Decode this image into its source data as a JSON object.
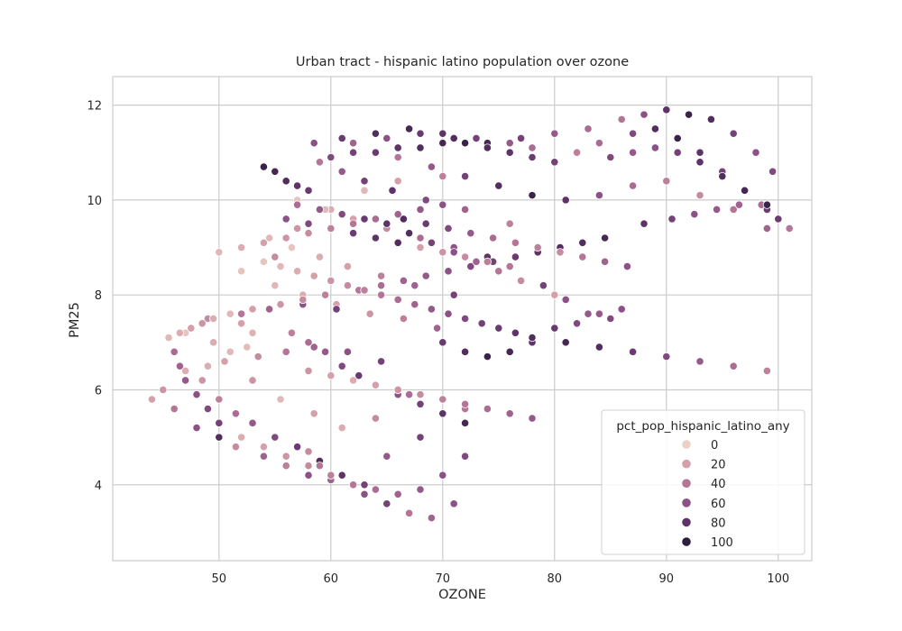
{
  "chart_data": {
    "type": "scatter",
    "title": "Urban tract - hispanic latino population over ozone",
    "xlabel": "OZONE",
    "ylabel": "PM25",
    "xlim": [
      40.5,
      103
    ],
    "ylim": [
      2.4,
      12.6
    ],
    "xticks": [
      50,
      60,
      70,
      80,
      90,
      100
    ],
    "yticks": [
      4,
      6,
      8,
      10,
      12
    ],
    "grid": true,
    "legend": {
      "title": "pct_pop_hispanic_latino_any",
      "placement": "lower-right",
      "entries": [
        {
          "label": "0",
          "value": 0,
          "color": "#ecd0c6"
        },
        {
          "label": "20",
          "value": 20,
          "color": "#d5a0a9"
        },
        {
          "label": "40",
          "value": 40,
          "color": "#b47596"
        },
        {
          "label": "60",
          "value": 60,
          "color": "#8c5186"
        },
        {
          "label": "80",
          "value": 80,
          "color": "#5e3368"
        },
        {
          "label": "100",
          "value": 100,
          "color": "#2d1e3e"
        }
      ]
    },
    "hue_field": "pct_pop_hispanic_latino_any",
    "series": [
      {
        "name": "tracts",
        "x": [
          47.0,
          49.5,
          51.0,
          52.0,
          52.5,
          53.0,
          55.0,
          57.0,
          60.0,
          63.0,
          66.0,
          70.0,
          45.0,
          44.0,
          46.0,
          48.0,
          50.0,
          51.5,
          54.0,
          56.0,
          58.0,
          62.0,
          65.0,
          68.0,
          72.0,
          49.0,
          53.0,
          55.5,
          58.5,
          61.0,
          64.0,
          67.0,
          52.0,
          55.0,
          57.5,
          60.5,
          63.5,
          66.5,
          69.5,
          54.5,
          56.5,
          59.0,
          61.5,
          64.5,
          67.5,
          71.0,
          57.0,
          59.5,
          62.0,
          65.0,
          68.0,
          71.0,
          74.0,
          59.0,
          61.0,
          63.0,
          65.5,
          68.5,
          72.0,
          76.0,
          58.5,
          61.0,
          64.0,
          67.0,
          70.0,
          73.0,
          76.0,
          78.0,
          62.0,
          65.0,
          68.0,
          71.0,
          74.0,
          77.0,
          80.0,
          83.0,
          86.0,
          88.0,
          90.0,
          92.0,
          94.0,
          96.0,
          98.0,
          99.5,
          100.0,
          82.0,
          84.0,
          87.0,
          89.0,
          91.0,
          93.0,
          95.0,
          97.0,
          99.0,
          66.0,
          69.0,
          72.0,
          75.0,
          78.0,
          81.0,
          84.0,
          87.0,
          90.0,
          93.0,
          96.0,
          99.0,
          79.0,
          81.0,
          83.0,
          85.0,
          70.0,
          72.0,
          74.0,
          76.0,
          78.0,
          80.0,
          82.0,
          84.0,
          86.0,
          54.0,
          55.0,
          56.0,
          57.0,
          58.0,
          47.0,
          48.5,
          50.0,
          51.5,
          53.0,
          55.0,
          57.0,
          59.0,
          61.0,
          63.0,
          49.0,
          52.0,
          54.5,
          57.5,
          60.5,
          50.5,
          53.5,
          56.0,
          58.5,
          61.5,
          64.5,
          56.5,
          58.0,
          59.5,
          61.0,
          62.5,
          64.0,
          66.0,
          68.0,
          70.0,
          72.0,
          58.0,
          59.0,
          60.0,
          63.0,
          65.0,
          67.0,
          69.0,
          71.0,
          45.5,
          46.5,
          47.5,
          48.5,
          49.5,
          51.0,
          53.0,
          55.5,
          57.5,
          59.5,
          62.5,
          64.5,
          66.5,
          68.5,
          70.5,
          72.5,
          74.5,
          76.5,
          78.5,
          80.5,
          82.5,
          84.5,
          88.0,
          90.5,
          92.5,
          94.5,
          96.5,
          98.5,
          101.0,
          60.0,
          62.0,
          64.0,
          66.0,
          68.0,
          70.0,
          72.0,
          74.0,
          76.0,
          78.0,
          80.0,
          85.0,
          87.0,
          89.0,
          91.0,
          93.0,
          95.0,
          97.0,
          99.0,
          66.5,
          68.5,
          70.5,
          72.5,
          74.5,
          76.5,
          78.5,
          80.5,
          82.5,
          84.5,
          86.5,
          57.0,
          59.0,
          61.0,
          63.0,
          65.0,
          67.0,
          69.0,
          71.0,
          73.0,
          75.0,
          77.0,
          80.0,
          54.0,
          55.5,
          57.0,
          58.5,
          60.0,
          61.5,
          63.0,
          64.5,
          66.0,
          67.5,
          69.0,
          70.5,
          72.0,
          73.5,
          75.0,
          76.5,
          78.0,
          81.0,
          84.0,
          87.0,
          90.0,
          93.0,
          96.0,
          99.0,
          58.0,
          60.0,
          62.0,
          64.0,
          66.0,
          68.0,
          70.0,
          72.0,
          74.0,
          76.0,
          78.0,
          56.0,
          58.0,
          60.0,
          62.0,
          64.0,
          66.0,
          68.0,
          70.0,
          72.0,
          74.0,
          76.0,
          46.0,
          46.5,
          47.0,
          48.0,
          49.0,
          50.0,
          52.0,
          54.0,
          56.0,
          58.0,
          60.0,
          62.0,
          64.0,
          66.0,
          68.0,
          70.0,
          72.0,
          50.0,
          52.0,
          54.0,
          56.0,
          58.0,
          60.0,
          62.0,
          64.0,
          66.0,
          68.0,
          70.0
        ],
        "y": [
          7.2,
          7.0,
          6.8,
          7.4,
          6.9,
          7.2,
          8.8,
          9.4,
          9.8,
          10.2,
          10.4,
          10.5,
          6.0,
          5.8,
          5.6,
          5.2,
          5.0,
          4.8,
          4.6,
          4.4,
          4.2,
          4.0,
          4.6,
          5.0,
          5.6,
          6.5,
          6.2,
          5.8,
          5.5,
          5.2,
          5.4,
          5.9,
          8.5,
          8.2,
          8.0,
          7.8,
          7.6,
          7.5,
          7.3,
          9.2,
          9.0,
          8.8,
          8.6,
          8.4,
          8.2,
          8.0,
          10.0,
          9.8,
          9.6,
          9.4,
          9.2,
          9.0,
          8.8,
          10.8,
          10.6,
          10.4,
          10.2,
          10.0,
          9.8,
          9.5,
          11.2,
          11.3,
          11.4,
          11.5,
          11.4,
          11.3,
          11.2,
          11.1,
          11.2,
          11.3,
          11.4,
          11.3,
          11.2,
          11.3,
          11.4,
          11.5,
          11.7,
          11.8,
          11.9,
          11.8,
          11.7,
          11.4,
          11.0,
          10.6,
          9.6,
          11.0,
          11.2,
          11.4,
          11.5,
          11.3,
          11.0,
          10.6,
          10.2,
          9.8,
          10.9,
          10.7,
          10.5,
          10.3,
          10.1,
          10.0,
          10.1,
          10.3,
          10.4,
          10.1,
          9.8,
          9.4,
          8.2,
          7.9,
          7.6,
          7.5,
          7.0,
          6.8,
          6.7,
          6.8,
          7.0,
          7.3,
          7.4,
          7.6,
          7.7,
          10.7,
          10.6,
          10.4,
          10.3,
          10.2,
          6.4,
          6.2,
          5.8,
          5.5,
          5.3,
          5.0,
          4.8,
          4.5,
          4.2,
          4.0,
          7.5,
          7.6,
          7.7,
          7.8,
          7.7,
          6.6,
          6.7,
          6.8,
          6.9,
          6.8,
          6.6,
          7.2,
          7.0,
          6.8,
          6.5,
          6.3,
          6.1,
          5.9,
          5.7,
          5.5,
          5.3,
          4.7,
          4.4,
          4.1,
          3.8,
          3.6,
          3.4,
          3.3,
          3.6,
          7.1,
          7.2,
          7.3,
          7.4,
          7.5,
          7.6,
          7.7,
          7.8,
          7.9,
          8.0,
          8.1,
          8.2,
          8.3,
          8.4,
          8.5,
          8.6,
          8.7,
          8.8,
          8.9,
          9.0,
          9.1,
          9.2,
          9.5,
          9.6,
          9.7,
          9.8,
          9.9,
          9.9,
          9.4,
          10.9,
          11.0,
          11.0,
          11.1,
          11.1,
          11.2,
          11.2,
          11.1,
          11.0,
          10.9,
          10.8,
          10.9,
          11.0,
          11.1,
          11.0,
          10.8,
          10.5,
          10.2,
          9.9,
          9.6,
          9.5,
          9.4,
          9.3,
          9.2,
          9.1,
          9.0,
          8.9,
          8.8,
          8.7,
          8.6,
          9.9,
          9.8,
          9.7,
          9.6,
          9.5,
          9.3,
          9.1,
          8.9,
          8.7,
          8.5,
          8.3,
          8.0,
          8.7,
          8.6,
          8.5,
          8.4,
          8.3,
          8.2,
          8.1,
          8.0,
          7.9,
          7.8,
          7.7,
          7.6,
          7.5,
          7.4,
          7.3,
          7.2,
          7.1,
          7.0,
          6.9,
          6.8,
          6.7,
          6.6,
          6.5,
          6.4,
          6.4,
          6.3,
          6.2,
          6.1,
          6.0,
          5.9,
          5.8,
          5.7,
          5.6,
          5.5,
          5.4,
          9.6,
          9.5,
          9.4,
          9.3,
          9.2,
          9.1,
          9.0,
          8.9,
          8.8,
          8.7,
          8.6,
          6.8,
          6.5,
          6.2,
          5.9,
          5.6,
          5.3,
          5.0,
          4.8,
          4.6,
          4.4,
          4.2,
          4.0,
          3.9,
          3.8,
          3.9,
          4.2,
          4.6,
          8.9,
          9.0,
          9.1,
          9.2,
          9.3,
          9.4,
          9.5,
          9.6,
          9.7,
          9.8,
          9.9
        ],
        "hue": [
          5,
          15,
          10,
          20,
          8,
          12,
          30,
          25,
          15,
          10,
          20,
          35,
          25,
          20,
          40,
          60,
          85,
          30,
          50,
          35,
          60,
          45,
          55,
          70,
          40,
          15,
          25,
          10,
          20,
          15,
          30,
          45,
          5,
          10,
          15,
          20,
          25,
          35,
          50,
          10,
          5,
          15,
          20,
          35,
          50,
          70,
          5,
          10,
          20,
          30,
          45,
          60,
          80,
          40,
          55,
          70,
          80,
          65,
          50,
          35,
          60,
          75,
          85,
          90,
          80,
          70,
          55,
          45,
          50,
          60,
          75,
          85,
          90,
          70,
          55,
          45,
          40,
          60,
          80,
          95,
          85,
          70,
          60,
          65,
          75,
          35,
          45,
          65,
          85,
          95,
          80,
          70,
          90,
          75,
          40,
          55,
          70,
          85,
          95,
          80,
          60,
          45,
          35,
          30,
          40,
          50,
          70,
          60,
          55,
          65,
          75,
          85,
          95,
          90,
          80,
          75,
          65,
          55,
          60,
          95,
          90,
          85,
          80,
          75,
          15,
          25,
          35,
          45,
          55,
          65,
          75,
          85,
          80,
          70,
          30,
          40,
          50,
          60,
          70,
          20,
          30,
          40,
          50,
          60,
          70,
          35,
          45,
          55,
          65,
          75,
          85,
          60,
          70,
          80,
          90,
          30,
          40,
          50,
          60,
          70,
          40,
          50,
          60,
          10,
          15,
          20,
          25,
          15,
          10,
          20,
          25,
          30,
          35,
          40,
          45,
          50,
          55,
          60,
          65,
          70,
          75,
          80,
          85,
          85,
          90,
          80,
          70,
          60,
          55,
          50,
          45,
          40,
          65,
          70,
          75,
          80,
          85,
          90,
          95,
          85,
          80,
          75,
          70,
          65,
          55,
          60,
          70,
          80,
          85,
          90,
          95,
          85,
          75,
          65,
          55,
          45,
          40,
          35,
          30,
          40,
          50,
          60,
          45,
          55,
          65,
          75,
          80,
          85,
          70,
          60,
          50,
          40,
          30,
          20,
          5,
          10,
          15,
          20,
          25,
          30,
          35,
          40,
          45,
          50,
          55,
          60,
          65,
          70,
          75,
          80,
          85,
          90,
          85,
          75,
          65,
          55,
          45,
          35,
          25,
          20,
          15,
          20,
          25,
          30,
          35,
          40,
          45,
          50,
          55,
          60,
          65,
          70,
          75,
          80,
          85,
          20,
          25,
          30,
          35,
          40,
          45,
          50,
          55,
          60,
          65,
          70,
          15,
          20,
          25,
          30,
          35,
          40,
          45,
          50,
          55,
          60,
          65,
          10,
          15,
          20,
          25,
          30,
          35,
          40,
          45,
          50,
          55,
          60,
          20,
          15,
          10,
          15,
          20,
          25,
          30,
          35,
          40,
          45,
          50
        ]
      }
    ]
  }
}
